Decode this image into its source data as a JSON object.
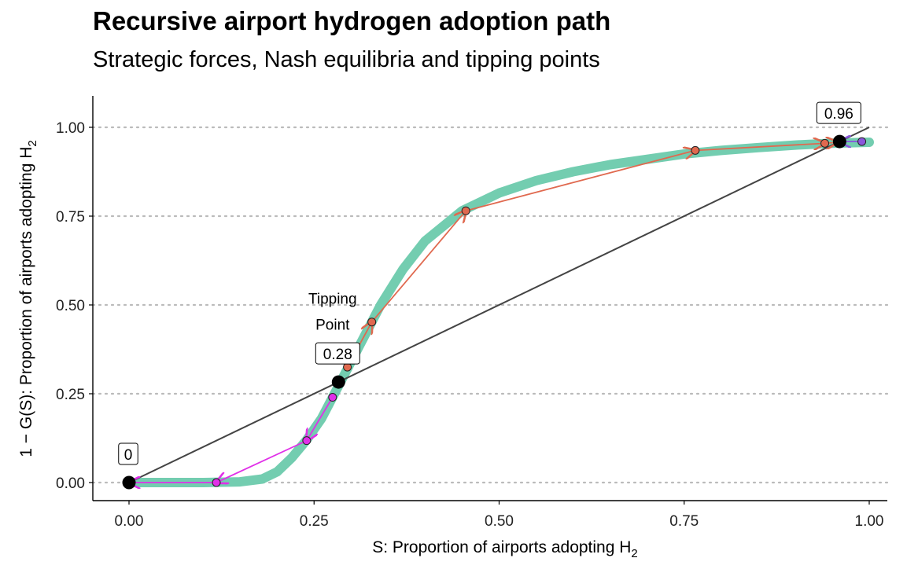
{
  "chart_data": {
    "type": "line",
    "title": "Recursive airport hydrogen adoption path",
    "subtitle": "Strategic forces, Nash equilibria and tipping points",
    "xlabel": "S: Proportion of airports adopting H",
    "xlabel_sub": "2",
    "ylabel": "1 − G(S): Proportion of airports adopting H",
    "ylabel_sub": "2",
    "xlim": [
      0,
      1
    ],
    "ylim": [
      0,
      1
    ],
    "x_ticks": [
      {
        "value": 0.0,
        "label": "0.00"
      },
      {
        "value": 0.25,
        "label": "0.25"
      },
      {
        "value": 0.5,
        "label": "0.50"
      },
      {
        "value": 0.75,
        "label": "0.75"
      },
      {
        "value": 1.0,
        "label": "1.00"
      }
    ],
    "y_ticks": [
      {
        "value": 0.0,
        "label": "0.00"
      },
      {
        "value": 0.25,
        "label": "0.25"
      },
      {
        "value": 0.5,
        "label": "0.50"
      },
      {
        "value": 0.75,
        "label": "0.75"
      },
      {
        "value": 1.0,
        "label": "1.00"
      }
    ],
    "grid": "horizontal dotted",
    "colors": {
      "curve": "#73cdb0",
      "diagonal": "#444444",
      "path_up": "#e0694f",
      "path_down": "#e030e8",
      "path_right": "#8a57dc",
      "equilibrium": "#000000"
    },
    "series": [
      {
        "role": "curve",
        "points": [
          [
            0.0,
            0.0
          ],
          [
            0.1,
            0.0
          ],
          [
            0.15,
            0.002
          ],
          [
            0.18,
            0.01
          ],
          [
            0.2,
            0.03
          ],
          [
            0.22,
            0.07
          ],
          [
            0.24,
            0.12
          ],
          [
            0.26,
            0.18
          ],
          [
            0.28,
            0.26
          ],
          [
            0.3,
            0.34
          ],
          [
            0.32,
            0.42
          ],
          [
            0.34,
            0.5
          ],
          [
            0.37,
            0.6
          ],
          [
            0.4,
            0.68
          ],
          [
            0.45,
            0.765
          ],
          [
            0.5,
            0.815
          ],
          [
            0.55,
            0.85
          ],
          [
            0.6,
            0.875
          ],
          [
            0.65,
            0.895
          ],
          [
            0.7,
            0.91
          ],
          [
            0.75,
            0.925
          ],
          [
            0.8,
            0.935
          ],
          [
            0.85,
            0.943
          ],
          [
            0.9,
            0.95
          ],
          [
            0.95,
            0.955
          ],
          [
            1.0,
            0.958
          ]
        ]
      },
      {
        "role": "diagonal",
        "points": [
          [
            0,
            0
          ],
          [
            1,
            1
          ]
        ]
      },
      {
        "role": "path-up",
        "points": [
          [
            0.295,
            0.325
          ],
          [
            0.328,
            0.452
          ],
          [
            0.455,
            0.765
          ],
          [
            0.765,
            0.935
          ],
          [
            0.94,
            0.955
          ],
          [
            0.957,
            0.958
          ]
        ]
      },
      {
        "role": "path-down",
        "points": [
          [
            0.275,
            0.24
          ],
          [
            0.24,
            0.118
          ],
          [
            0.118,
            0.0
          ],
          [
            0.0,
            0.0
          ]
        ]
      },
      {
        "role": "path-right",
        "points": [
          [
            0.99,
            0.96
          ],
          [
            0.96,
            0.96
          ]
        ]
      }
    ],
    "equilibria": [
      {
        "x": 0.0,
        "y": 0.0,
        "label": "0"
      },
      {
        "x": 0.283,
        "y": 0.283,
        "label": "0.28"
      },
      {
        "x": 0.96,
        "y": 0.96,
        "label": "0.96"
      }
    ],
    "annotations": [
      {
        "text_line1": "Tipping",
        "text_line2": "Point",
        "x": 0.275,
        "y": 0.495
      }
    ]
  }
}
